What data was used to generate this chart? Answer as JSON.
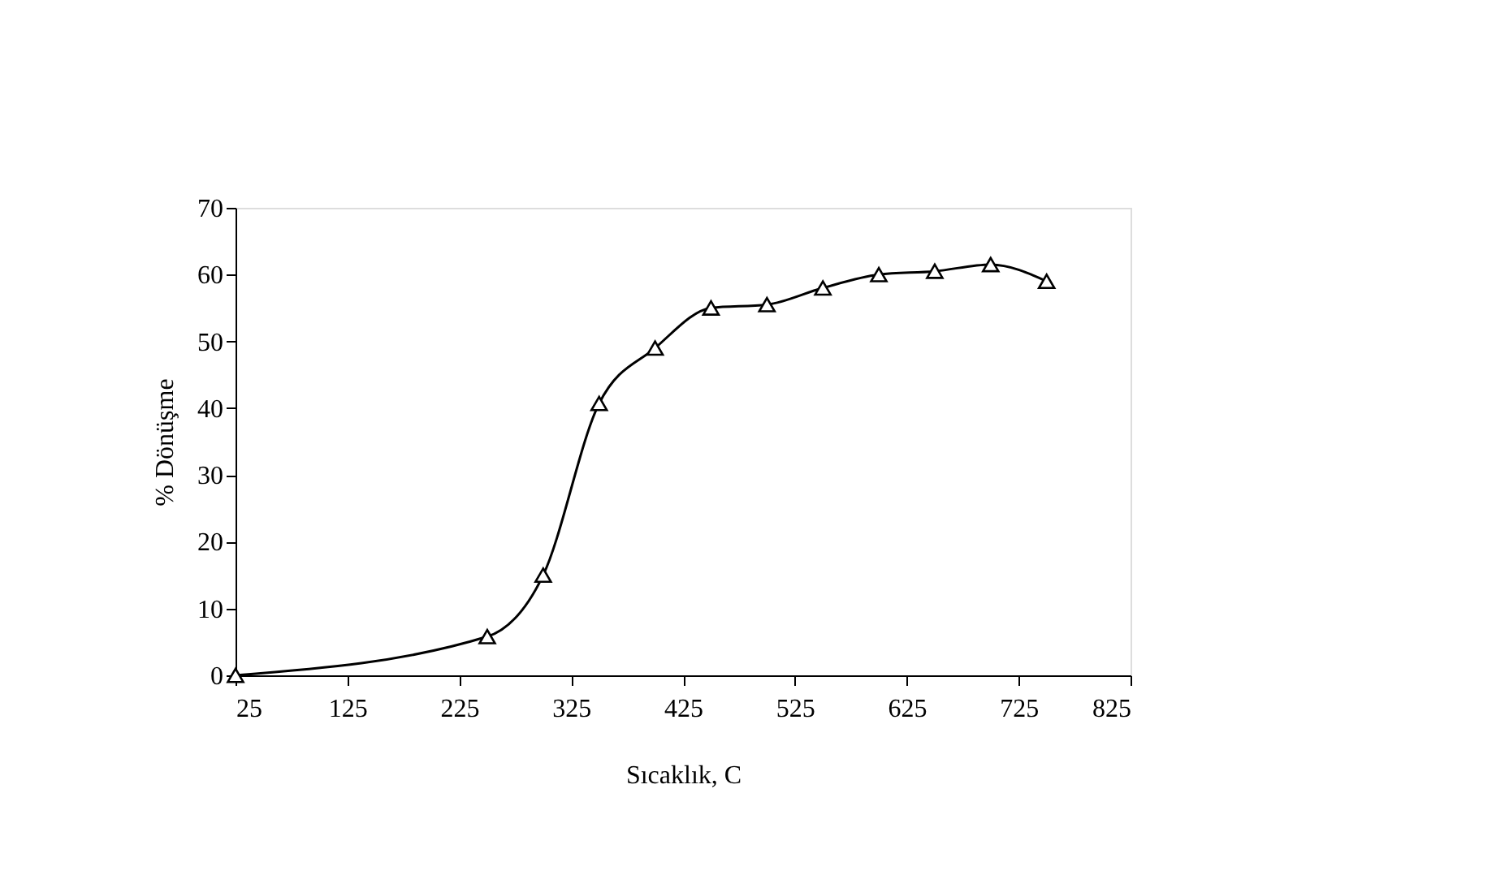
{
  "chart_data": {
    "type": "line",
    "xlabel": "Sıcaklık, C",
    "ylabel": "% Dönüşme",
    "x": [
      25,
      250,
      300,
      350,
      400,
      450,
      500,
      550,
      600,
      650,
      700,
      750
    ],
    "series": [
      {
        "color": "#000000",
        "values": [
          0,
          5.8,
          15,
          40.7,
          49,
          55,
          55.5,
          58,
          60,
          60.5,
          61.5,
          59
        ]
      }
    ],
    "xlim": [
      25,
      825
    ],
    "xticks": [
      25,
      125,
      225,
      325,
      425,
      525,
      625,
      725,
      825
    ],
    "ylim": [
      0,
      70
    ],
    "yticks": [
      0,
      10,
      20,
      30,
      40,
      50,
      60,
      70
    ],
    "marker": "triangle",
    "line_style": "solid",
    "grid": false,
    "legend": false
  }
}
